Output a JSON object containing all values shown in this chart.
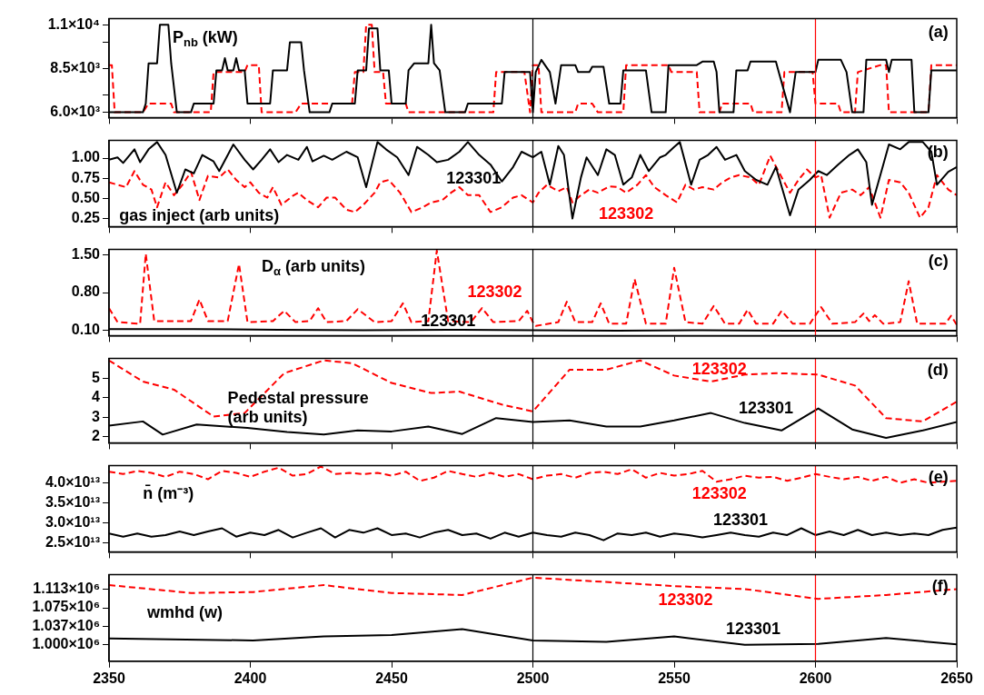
{
  "chart_data": [
    {
      "type": "line",
      "xlim": [
        2350,
        2650
      ],
      "xticks": [
        2350,
        2400,
        2450,
        2500,
        2550,
        2600,
        2650
      ],
      "ylim": [
        5700,
        11350
      ],
      "yticks": [
        {
          "value": 6000,
          "label": "6.0×10³"
        },
        {
          "value": 7000,
          "label": null
        },
        {
          "value": 8500,
          "label": "8.5×10³"
        },
        {
          "value": 10000,
          "label": null
        },
        {
          "value": 11000,
          "label": "1.1×10⁴"
        }
      ],
      "tick_labels": "y",
      "grid": false,
      "annotations": [
        "P$_{nb}$ (kW)",
        "(a)"
      ],
      "ref_lines": [
        {
          "axis": "x",
          "value": 2500,
          "color": "#000000"
        },
        {
          "axis": "x",
          "value": 2600,
          "color": "#ff0000"
        }
      ],
      "series": [
        {
          "color": "#000000",
          "line_style": "solid",
          "x": [
            2350,
            2362,
            2363,
            2364,
            2367,
            2368,
            2371,
            2372,
            2374,
            2379,
            2380,
            2387,
            2388,
            2390,
            2391,
            2392,
            2394,
            2395,
            2396,
            2398,
            2399,
            2407,
            2408,
            2413,
            2414,
            2418,
            2419,
            2421,
            2428,
            2429,
            2437,
            2438,
            2441,
            2442,
            2445,
            2446,
            2449,
            2450,
            2455,
            2456,
            2458,
            2463,
            2464,
            2465,
            2467,
            2469,
            2476,
            2477,
            2489,
            2490,
            2499,
            2500,
            2501,
            2503,
            2506,
            2508,
            2510,
            2515,
            2516,
            2520,
            2521,
            2525,
            2527,
            2531,
            2532,
            2540,
            2542,
            2547,
            2548,
            2558,
            2560,
            2564,
            2565,
            2566,
            2571,
            2572,
            2576,
            2577,
            2586,
            2587,
            2591,
            2593,
            2600,
            2601,
            2609,
            2611,
            2613,
            2617,
            2618,
            2625,
            2626,
            2627,
            2634,
            2635,
            2640,
            2641,
            2650
          ],
          "values": [
            6000,
            6000,
            6500,
            8800,
            8800,
            11000,
            11000,
            8800,
            6000,
            6000,
            6500,
            6500,
            8400,
            8400,
            9100,
            8400,
            8400,
            9100,
            8400,
            8400,
            6500,
            6500,
            8400,
            8400,
            10000,
            10000,
            8400,
            6000,
            6000,
            6500,
            6500,
            8400,
            8400,
            10800,
            10800,
            8400,
            8400,
            6500,
            6500,
            8400,
            8800,
            8800,
            11000,
            8800,
            8400,
            6000,
            6000,
            6500,
            6500,
            8300,
            8300,
            6000,
            8300,
            9000,
            8300,
            6500,
            8700,
            8700,
            8300,
            8300,
            8600,
            8600,
            6500,
            6500,
            8400,
            8400,
            6000,
            6000,
            8700,
            8700,
            8900,
            8900,
            8300,
            6000,
            6000,
            8400,
            8400,
            8900,
            8900,
            8300,
            6000,
            8300,
            8300,
            9000,
            9000,
            8300,
            6000,
            6000,
            9000,
            9000,
            8300,
            9000,
            9000,
            6000,
            6000,
            8400,
            8400
          ]
        },
        {
          "color": "#ff0000",
          "line_style": "dashed",
          "x": [
            2350,
            2351,
            2352,
            2362,
            2364,
            2372,
            2373,
            2386,
            2387,
            2398,
            2399,
            2403,
            2404,
            2416,
            2418,
            2436,
            2437,
            2440,
            2441,
            2443,
            2444,
            2447,
            2448,
            2455,
            2456,
            2486,
            2487,
            2497,
            2499,
            2500,
            2502,
            2503,
            2515,
            2516,
            2521,
            2523,
            2532,
            2533,
            2548,
            2549,
            2558,
            2559,
            2566,
            2567,
            2577,
            2578,
            2588,
            2589,
            2599,
            2600,
            2608,
            2609,
            2614,
            2615,
            2623,
            2625,
            2626,
            2640,
            2641,
            2650
          ],
          "values": [
            8700,
            8700,
            6000,
            6000,
            6500,
            6500,
            6000,
            6000,
            8300,
            8300,
            8700,
            8700,
            6000,
            6000,
            6500,
            6500,
            8300,
            8300,
            11000,
            11000,
            8300,
            8300,
            6500,
            6500,
            6000,
            6000,
            8300,
            8300,
            6000,
            8700,
            8700,
            6000,
            6000,
            6500,
            6500,
            6000,
            6000,
            8700,
            8700,
            8300,
            8300,
            6000,
            6000,
            6500,
            6500,
            6000,
            6000,
            8300,
            8300,
            6500,
            6500,
            6000,
            6000,
            8300,
            8700,
            8700,
            6000,
            6000,
            8700,
            8700
          ]
        }
      ]
    },
    {
      "type": "line",
      "xlim": [
        2350,
        2650
      ],
      "xticks": [
        2350,
        2400,
        2450,
        2500,
        2550,
        2600,
        2650
      ],
      "ylim": [
        0.15,
        1.22
      ],
      "yticks": [
        0.25,
        {
          "value": 0.5,
          "label": "0.50"
        },
        0.75,
        {
          "value": 1.0,
          "label": "1.00"
        }
      ],
      "tick_labels": "y",
      "grid": false,
      "annotations": [
        "gas inject (arb units)",
        "(b)"
      ],
      "ref_lines": [
        {
          "axis": "x",
          "value": 2500,
          "color": "#000000"
        },
        {
          "axis": "x",
          "value": 2600,
          "color": "#ff0000"
        }
      ],
      "series": [
        {
          "name": "123301",
          "color": "#000000",
          "line_style": "solid",
          "x": [
            2350,
            2353,
            2355,
            2359,
            2361,
            2364,
            2367,
            2370,
            2374,
            2377,
            2380,
            2383,
            2387,
            2389,
            2394,
            2398,
            2401,
            2404,
            2407,
            2410,
            2413,
            2417,
            2420,
            2422,
            2426,
            2429,
            2434,
            2438,
            2441,
            2445,
            2448,
            2452,
            2456,
            2459,
            2463,
            2466,
            2470,
            2474,
            2477,
            2481,
            2485,
            2489,
            2493,
            2496,
            2500,
            2503,
            2506,
            2509,
            2511,
            2514,
            2517,
            2519,
            2523,
            2526,
            2529,
            2532,
            2535,
            2538,
            2541,
            2545,
            2547,
            2550,
            2552,
            2556,
            2559,
            2562,
            2565,
            2568,
            2572,
            2575,
            2579,
            2583,
            2586,
            2591,
            2594,
            2598,
            2601,
            2604,
            2608,
            2612,
            2615,
            2618,
            2620,
            2624,
            2626,
            2630,
            2633,
            2638,
            2641,
            2643,
            2647,
            2650
          ],
          "values": [
            0.98,
            1.01,
            0.94,
            1.11,
            0.95,
            1.11,
            1.2,
            1.04,
            0.57,
            0.86,
            0.81,
            1.04,
            0.96,
            0.84,
            1.17,
            0.98,
            0.86,
            0.98,
            1.11,
            0.95,
            1.04,
            0.98,
            1.14,
            0.96,
            1.03,
            0.98,
            1.08,
            1.01,
            0.64,
            1.2,
            1.11,
            1.01,
            0.79,
            1.14,
            1.04,
            0.95,
            0.98,
            1.08,
            1.2,
            1.04,
            0.92,
            0.71,
            0.89,
            1.08,
            1.01,
            1.08,
            0.67,
            1.15,
            1.04,
            0.25,
            0.76,
            1.01,
            0.79,
            1.11,
            1.04,
            0.67,
            0.76,
            1.04,
            0.84,
            1.01,
            1.04,
            1.14,
            1.2,
            0.67,
            0.98,
            1.04,
            1.14,
            0.98,
            1.04,
            0.84,
            0.73,
            0.67,
            0.89,
            0.29,
            0.61,
            0.73,
            0.84,
            0.79,
            0.92,
            1.04,
            1.11,
            0.95,
            0.42,
            0.92,
            1.17,
            1.11,
            1.2,
            1.2,
            1.08,
            0.67,
            0.83,
            0.89
          ]
        },
        {
          "name": "123302",
          "color": "#ff0000",
          "line_style": "dashed",
          "x": [
            2350,
            2353,
            2356,
            2359,
            2362,
            2365,
            2367,
            2370,
            2373,
            2376,
            2379,
            2382,
            2385,
            2389,
            2392,
            2395,
            2398,
            2400,
            2403,
            2406,
            2408,
            2411,
            2415,
            2417,
            2420,
            2424,
            2427,
            2430,
            2434,
            2437,
            2440,
            2444,
            2446,
            2449,
            2453,
            2457,
            2461,
            2464,
            2468,
            2471,
            2474,
            2477,
            2481,
            2485,
            2489,
            2493,
            2496,
            2500,
            2502,
            2505,
            2509,
            2512,
            2514,
            2517,
            2520,
            2523,
            2527,
            2530,
            2533,
            2537,
            2540,
            2543,
            2547,
            2551,
            2554,
            2557,
            2560,
            2564,
            2567,
            2570,
            2573,
            2577,
            2580,
            2584,
            2587,
            2591,
            2594,
            2597,
            2600,
            2602,
            2605,
            2609,
            2613,
            2616,
            2619,
            2623,
            2626,
            2630,
            2633,
            2637,
            2640,
            2643,
            2647,
            2650
          ],
          "values": [
            0.7,
            0.67,
            0.64,
            0.84,
            0.67,
            0.61,
            0.39,
            0.7,
            0.54,
            0.67,
            0.83,
            0.48,
            0.78,
            0.76,
            0.86,
            0.73,
            0.64,
            0.7,
            0.57,
            0.51,
            0.64,
            0.42,
            0.53,
            0.57,
            0.48,
            0.39,
            0.51,
            0.51,
            0.36,
            0.33,
            0.42,
            0.57,
            0.7,
            0.73,
            0.57,
            0.33,
            0.39,
            0.45,
            0.48,
            0.57,
            0.64,
            0.54,
            0.54,
            0.33,
            0.39,
            0.51,
            0.54,
            0.45,
            0.57,
            0.67,
            0.59,
            0.64,
            0.45,
            0.54,
            0.61,
            0.57,
            0.65,
            0.64,
            0.57,
            0.67,
            0.79,
            0.64,
            0.54,
            0.45,
            0.67,
            0.61,
            0.64,
            0.61,
            0.7,
            0.76,
            0.79,
            0.76,
            0.67,
            1.03,
            0.83,
            0.57,
            0.73,
            0.86,
            0.76,
            0.79,
            0.26,
            0.57,
            0.61,
            0.54,
            0.64,
            0.26,
            0.73,
            0.7,
            0.57,
            0.26,
            0.39,
            0.79,
            0.61,
            0.54
          ]
        }
      ]
    },
    {
      "type": "line",
      "xlim": [
        2350,
        2650
      ],
      "xticks": [
        2350,
        2400,
        2450,
        2500,
        2550,
        2600,
        2650
      ],
      "ylim": [
        0,
        1.6
      ],
      "yticks": [
        {
          "value": 0.1,
          "label": "0.10"
        },
        {
          "value": 0.8,
          "label": "0.80"
        },
        {
          "value": 1.5,
          "label": "1.50"
        }
      ],
      "tick_labels": "y",
      "grid": false,
      "annotations": [
        "D$_{α}$ (arb units)",
        "(c)"
      ],
      "ref_lines": [
        {
          "axis": "x",
          "value": 2500,
          "color": "#000000"
        },
        {
          "axis": "x",
          "value": 2600,
          "color": "#ff0000"
        }
      ],
      "series": [
        {
          "name": "123301",
          "color": "#000000",
          "line_style": "solid",
          "x": [
            2350,
            2380,
            2410,
            2440,
            2470,
            2500,
            2530,
            2560,
            2590,
            2620,
            2650
          ],
          "values": [
            0.12,
            0.12,
            0.11,
            0.1,
            0.11,
            0.1,
            0.09,
            0.1,
            0.09,
            0.09,
            0.09
          ]
        },
        {
          "name": "123302",
          "color": "#ff0000",
          "line_style": "dashed",
          "x": [
            2350,
            2353,
            2361,
            2363,
            2366,
            2379,
            2382,
            2385,
            2392,
            2396,
            2399,
            2408,
            2412,
            2416,
            2421,
            2424,
            2427,
            2434,
            2438,
            2444,
            2450,
            2454,
            2457,
            2463,
            2466,
            2470,
            2478,
            2482,
            2486,
            2495,
            2498,
            2500,
            2501,
            2509,
            2512,
            2515,
            2521,
            2524,
            2527,
            2533,
            2536,
            2540,
            2547,
            2550,
            2554,
            2560,
            2564,
            2568,
            2573,
            2576,
            2579,
            2585,
            2588,
            2592,
            2598,
            2602,
            2606,
            2614,
            2617,
            2619,
            2621,
            2624,
            2630,
            2633,
            2636,
            2646,
            2648,
            2650
          ],
          "values": [
            0.51,
            0.25,
            0.22,
            1.52,
            0.27,
            0.27,
            0.67,
            0.27,
            0.27,
            1.33,
            0.25,
            0.27,
            0.46,
            0.25,
            0.27,
            0.51,
            0.25,
            0.27,
            0.49,
            0.25,
            0.27,
            0.6,
            0.25,
            0.27,
            1.58,
            0.27,
            0.25,
            0.51,
            0.25,
            0.27,
            0.46,
            0.25,
            0.18,
            0.25,
            0.63,
            0.25,
            0.25,
            0.6,
            0.22,
            0.22,
            1.05,
            0.22,
            0.22,
            1.26,
            0.25,
            0.22,
            0.55,
            0.22,
            0.22,
            0.48,
            0.22,
            0.22,
            0.46,
            0.22,
            0.22,
            0.53,
            0.22,
            0.25,
            0.41,
            0.27,
            0.38,
            0.22,
            0.25,
            1.01,
            0.22,
            0.22,
            0.37,
            0.2
          ]
        }
      ]
    },
    {
      "type": "line",
      "xlim": [
        2350,
        2650
      ],
      "xticks": [
        2350,
        2400,
        2450,
        2500,
        2550,
        2600,
        2650
      ],
      "ylim": [
        1.7,
        6
      ],
      "yticks": [
        2,
        3,
        4,
        5
      ],
      "tick_labels": "y",
      "grid": false,
      "annotations": [
        "Pedestal pressure",
        "(arb units)",
        "(d)"
      ],
      "ref_lines": [
        {
          "axis": "x",
          "value": 2500,
          "color": "#000000"
        },
        {
          "axis": "x",
          "value": 2600,
          "color": "#ff0000"
        }
      ],
      "series": [
        {
          "name": "123301",
          "color": "#000000",
          "line_style": "solid",
          "x": [
            2350,
            2362,
            2369,
            2381,
            2399,
            2413,
            2426,
            2438,
            2450,
            2463,
            2475,
            2487,
            2500,
            2513,
            2526,
            2538,
            2550,
            2563,
            2575,
            2588,
            2601,
            2613,
            2625,
            2638,
            2650
          ],
          "values": [
            2.58,
            2.79,
            2.12,
            2.63,
            2.46,
            2.25,
            2.12,
            2.33,
            2.28,
            2.53,
            2.15,
            2.96,
            2.76,
            2.84,
            2.53,
            2.53,
            2.84,
            3.22,
            2.71,
            2.33,
            3.45,
            2.38,
            1.95,
            2.33,
            2.76
          ]
        },
        {
          "name": "123302",
          "color": "#ff0000",
          "line_style": "dashed",
          "x": [
            2350,
            2362,
            2373,
            2387,
            2398,
            2412,
            2426,
            2436,
            2450,
            2464,
            2474,
            2489,
            2500,
            2513,
            2526,
            2538,
            2550,
            2563,
            2575,
            2587,
            2601,
            2614,
            2625,
            2638,
            2650
          ],
          "values": [
            5.9,
            4.82,
            4.41,
            3.04,
            3.22,
            5.25,
            5.9,
            5.76,
            4.75,
            4.24,
            4.31,
            3.65,
            3.3,
            5.43,
            5.43,
            5.9,
            5.13,
            4.82,
            5.18,
            5.25,
            5.18,
            4.62,
            2.96,
            2.79,
            3.8
          ]
        }
      ]
    },
    {
      "type": "line",
      "xlim": [
        2350,
        2650
      ],
      "xticks": [
        2350,
        2400,
        2450,
        2500,
        2550,
        2600,
        2650
      ],
      "ylim": [
        22700000000000.0,
        44300000000000.0
      ],
      "yticks": [
        {
          "value": 25000000000000.0,
          "label": "2.5×10¹³"
        },
        {
          "value": 30000000000000.0,
          "label": "3.0×10¹³"
        },
        {
          "value": 35000000000000.0,
          "label": "3.5×10¹³"
        },
        {
          "value": 40000000000000.0,
          "label": "4.0×10¹³"
        }
      ],
      "tick_labels": "y",
      "grid": false,
      "annotations": [
        "n̄ (m⁻³)",
        "(e)"
      ],
      "ref_lines": [
        {
          "axis": "x",
          "value": 2500,
          "color": "#000000"
        },
        {
          "axis": "x",
          "value": 2600,
          "color": "#ff0000"
        }
      ],
      "x": [
        2350,
        2355,
        2360,
        2365,
        2370,
        2375,
        2380,
        2385,
        2390,
        2395,
        2400,
        2405,
        2410,
        2415,
        2420,
        2425,
        2430,
        2435,
        2440,
        2445,
        2450,
        2455,
        2460,
        2465,
        2470,
        2475,
        2480,
        2485,
        2490,
        2495,
        2500,
        2505,
        2510,
        2515,
        2520,
        2525,
        2530,
        2535,
        2540,
        2545,
        2550,
        2555,
        2560,
        2565,
        2570,
        2575,
        2580,
        2585,
        2590,
        2595,
        2600,
        2605,
        2610,
        2615,
        2620,
        2625,
        2630,
        2635,
        2640,
        2645,
        2650
      ],
      "series": [
        {
          "name": "123301",
          "color": "#000000",
          "line_style": "solid",
          "values": [
            27300000000000.0,
            26500000000000.0,
            27300000000000.0,
            26500000000000.0,
            26900000000000.0,
            27800000000000.0,
            26900000000000.0,
            27800000000000.0,
            28600000000000.0,
            26500000000000.0,
            27500000000000.0,
            26900000000000.0,
            28200000000000.0,
            26300000000000.0,
            27500000000000.0,
            28600000000000.0,
            26300000000000.0,
            28200000000000.0,
            27500000000000.0,
            28600000000000.0,
            26900000000000.0,
            27300000000000.0,
            26300000000000.0,
            27500000000000.0,
            28200000000000.0,
            26900000000000.0,
            27300000000000.0,
            26000000000000.0,
            27500000000000.0,
            26500000000000.0,
            27500000000000.0,
            26900000000000.0,
            26500000000000.0,
            27500000000000.0,
            26900000000000.0,
            25600000000000.0,
            27300000000000.0,
            26900000000000.0,
            27500000000000.0,
            26500000000000.0,
            27300000000000.0,
            26900000000000.0,
            26300000000000.0,
            26900000000000.0,
            27500000000000.0,
            26900000000000.0,
            26500000000000.0,
            27500000000000.0,
            26900000000000.0,
            28600000000000.0,
            26900000000000.0,
            27800000000000.0,
            26900000000000.0,
            28200000000000.0,
            26900000000000.0,
            27500000000000.0,
            26900000000000.0,
            27300000000000.0,
            26900000000000.0,
            28200000000000.0,
            28800000000000.0
          ]
        },
        {
          "name": "123302",
          "color": "#ff0000",
          "line_style": "dashed",
          "values": [
            42800000000000.0,
            42200000000000.0,
            43000000000000.0,
            42500000000000.0,
            41500000000000.0,
            42800000000000.0,
            42200000000000.0,
            40900000000000.0,
            43000000000000.0,
            42500000000000.0,
            41500000000000.0,
            42800000000000.0,
            43800000000000.0,
            41800000000000.0,
            42200000000000.0,
            44100000000000.0,
            42200000000000.0,
            42500000000000.0,
            42200000000000.0,
            42500000000000.0,
            41800000000000.0,
            42800000000000.0,
            40500000000000.0,
            41300000000000.0,
            43000000000000.0,
            42200000000000.0,
            41500000000000.0,
            42500000000000.0,
            41500000000000.0,
            42200000000000.0,
            40900000000000.0,
            41800000000000.0,
            42200000000000.0,
            41300000000000.0,
            42500000000000.0,
            42800000000000.0,
            42200000000000.0,
            43400000000000.0,
            41300000000000.0,
            42500000000000.0,
            41800000000000.0,
            42200000000000.0,
            43000000000000.0,
            40300000000000.0,
            40900000000000.0,
            41800000000000.0,
            41300000000000.0,
            41500000000000.0,
            40500000000000.0,
            41300000000000.0,
            42200000000000.0,
            41500000000000.0,
            40900000000000.0,
            41500000000000.0,
            40500000000000.0,
            41500000000000.0,
            40000000000000.0,
            40900000000000.0,
            40000000000000.0,
            40300000000000.0,
            40500000000000.0
          ]
        }
      ]
    },
    {
      "type": "line",
      "xlim": [
        2350,
        2650
      ],
      "xticks": [
        2350,
        2400,
        2450,
        2500,
        2550,
        2600,
        2650
      ],
      "ylim": [
        967000,
        1142000
      ],
      "yticks": [
        {
          "value": 1000000,
          "label": "1.000×10⁶"
        },
        {
          "value": 1037000,
          "label": "1.037×10⁶"
        },
        {
          "value": 1075000,
          "label": "1.075×10⁶"
        },
        {
          "value": 1113000,
          "label": "1.113×10⁶"
        }
      ],
      "grid": false,
      "annotations": [
        "wmhd (w)",
        "(f)"
      ],
      "ref_lines": [
        {
          "axis": "x",
          "value": 2500,
          "color": "#000000"
        },
        {
          "axis": "x",
          "value": 2600,
          "color": "#ff0000"
        }
      ],
      "series": [
        {
          "name": "123301",
          "color": "#000000",
          "line_style": "solid",
          "x": [
            2350,
            2401,
            2426,
            2450,
            2475,
            2500,
            2526,
            2550,
            2575,
            2601,
            2625,
            2650
          ],
          "values": [
            1013000,
            1009000,
            1017000,
            1020000,
            1032000,
            1009000,
            1006000,
            1017000,
            1000000,
            1002000,
            1014000,
            1001000
          ]
        },
        {
          "name": "123302",
          "color": "#ff0000",
          "line_style": "dashed",
          "x": [
            2350,
            2379,
            2401,
            2426,
            2450,
            2475,
            2500,
            2550,
            2575,
            2601,
            2625,
            2650
          ],
          "values": [
            1121000,
            1105000,
            1107000,
            1121000,
            1105000,
            1101000,
            1136000,
            1119000,
            1113000,
            1093000,
            1101000,
            1113000
          ]
        }
      ]
    }
  ]
}
